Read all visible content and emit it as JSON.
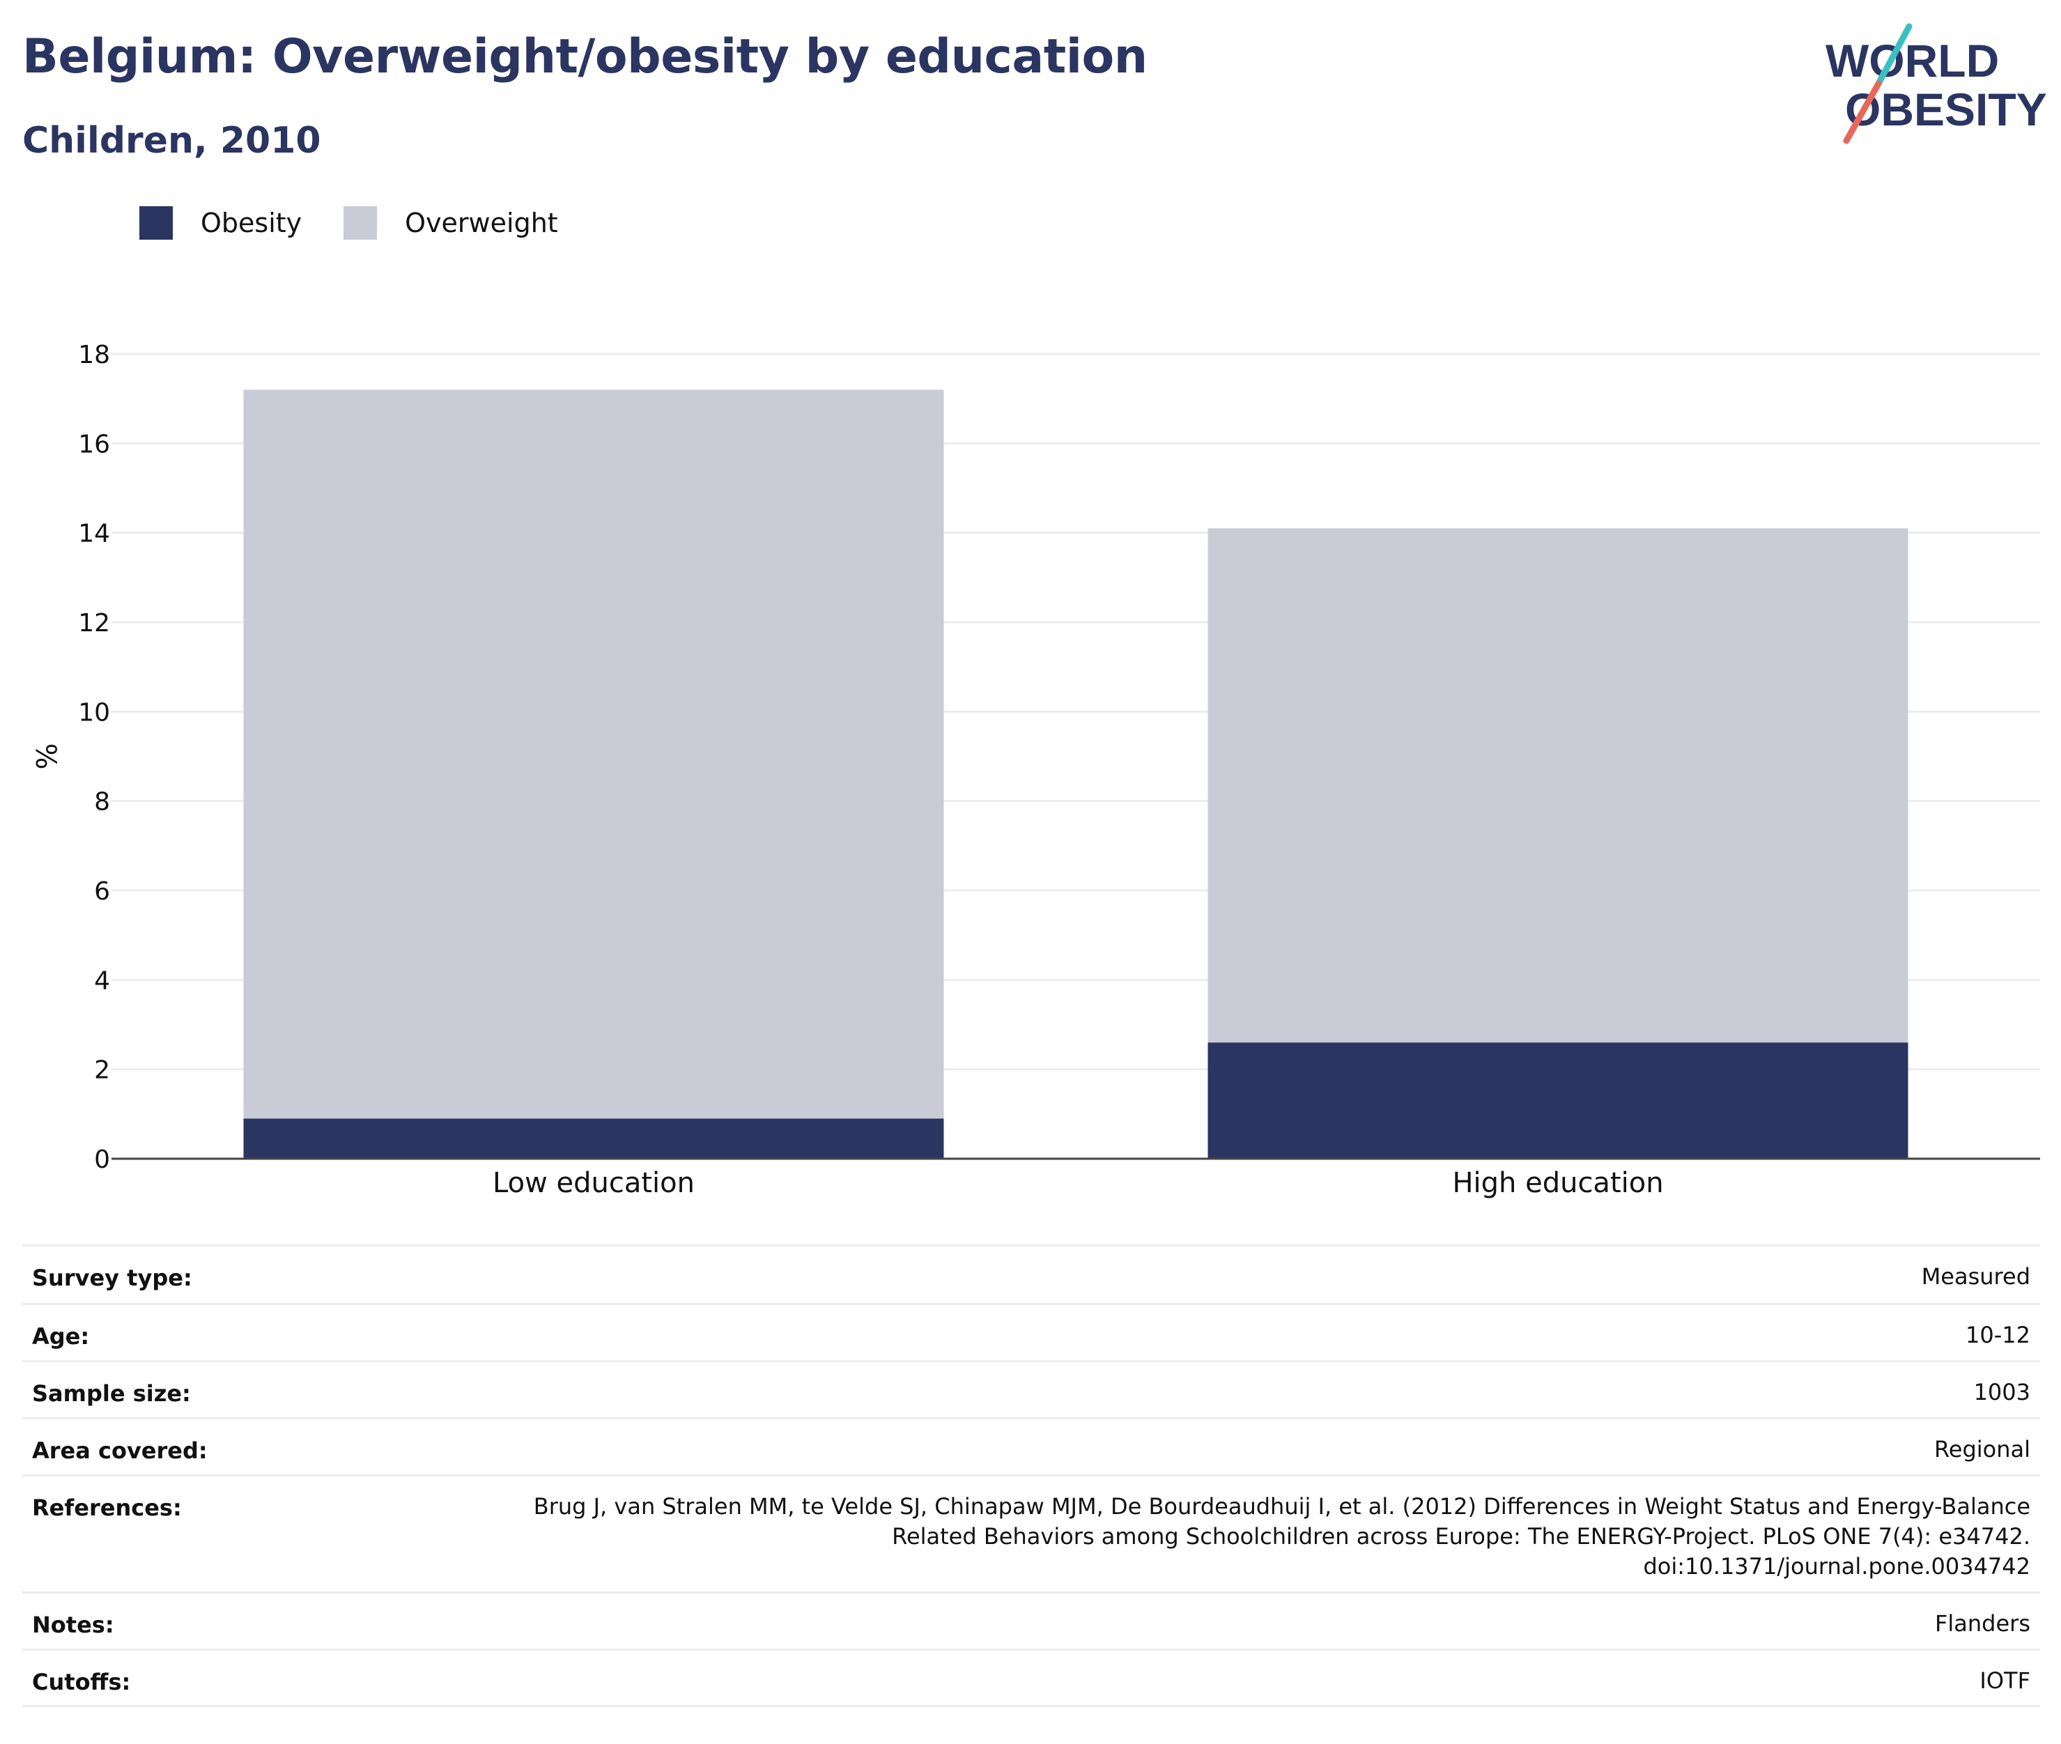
{
  "header": {
    "title": "Belgium: Overweight/obesity by education",
    "subtitle": "Children, 2010"
  },
  "logo": {
    "line1": "WORLD",
    "line2": "OBESITY",
    "accent_teal": "#3bbfc1",
    "accent_coral": "#e8675a",
    "text_color": "#2b3562"
  },
  "legend": [
    {
      "label": "Obesity",
      "color": "#2b3562"
    },
    {
      "label": "Overweight",
      "color": "#c9ccd7"
    }
  ],
  "chart_data": {
    "type": "bar",
    "stacked": true,
    "categories": [
      "Low education",
      "High education"
    ],
    "series": [
      {
        "name": "Obesity",
        "values": [
          0.9,
          2.6
        ],
        "color": "#2b3562"
      },
      {
        "name": "Overweight",
        "values": [
          16.3,
          11.5
        ],
        "color": "#c9ccd7"
      }
    ],
    "title": "Belgium: Overweight/obesity by education",
    "subtitle": "Children, 2010",
    "xlabel": "",
    "ylabel": "%",
    "ylim": [
      0,
      18
    ],
    "yticks": [
      "0",
      "2",
      "4",
      "6",
      "8",
      "10",
      "12",
      "14",
      "16",
      "18"
    ],
    "grid": true,
    "legend_position": "top-left"
  },
  "info": [
    {
      "label": "Survey type:",
      "value": [
        "Measured"
      ]
    },
    {
      "label": "Age:",
      "value": [
        "10-12"
      ]
    },
    {
      "label": "Sample size:",
      "value": [
        "1003"
      ]
    },
    {
      "label": "Area covered:",
      "value": [
        "Regional"
      ]
    },
    {
      "label": "References:",
      "value": [
        "Brug J, van Stralen MM, te Velde SJ, Chinapaw MJM, De Bourdeaudhuij I, et al. (2012) Differences in Weight Status and Energy-Balance",
        "Related Behaviors among Schoolchildren across Europe: The ENERGY-Project. PLoS ONE 7(4): e34742.",
        "doi:10.1371/journal.pone.0034742"
      ]
    },
    {
      "label": "Notes:",
      "value": [
        "Flanders"
      ]
    },
    {
      "label": "Cutoffs:",
      "value": [
        "IOTF"
      ]
    }
  ]
}
